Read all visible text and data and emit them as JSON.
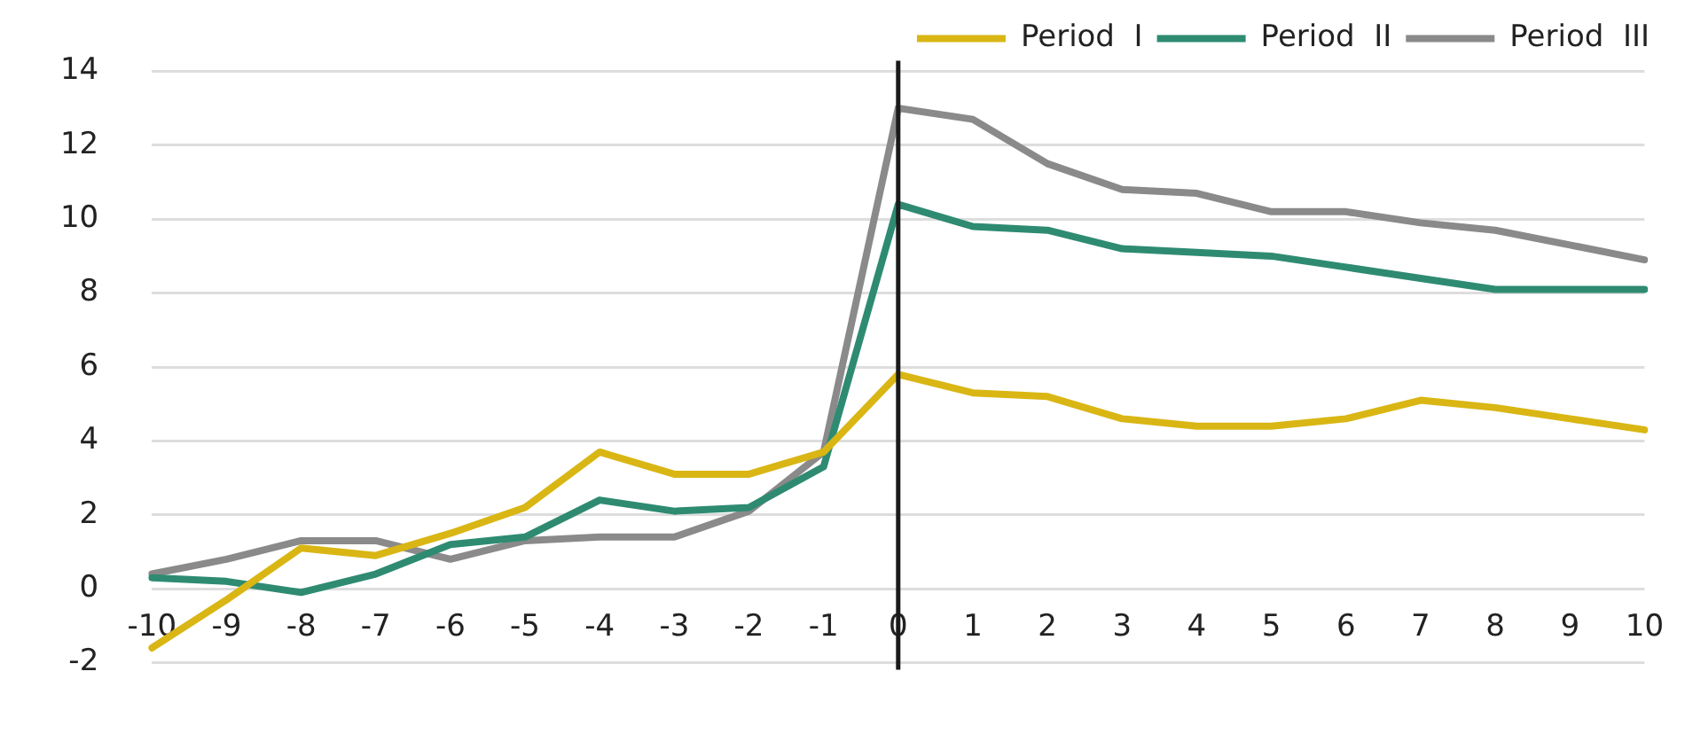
{
  "chart_data": {
    "type": "line",
    "categories": [
      "-10",
      "-9",
      "-8",
      "-7",
      "-6",
      "-5",
      "-4",
      "-3",
      "-2",
      "-1",
      "0",
      "1",
      "2",
      "3",
      "4",
      "5",
      "6",
      "7",
      "8",
      "9",
      "10"
    ],
    "series": [
      {
        "name": "Period  I",
        "color": "#d9b614",
        "values": [
          -1.6,
          -0.3,
          1.1,
          0.9,
          1.5,
          2.2,
          3.7,
          3.1,
          3.1,
          3.7,
          5.8,
          5.3,
          5.2,
          4.6,
          4.4,
          4.4,
          4.6,
          5.1,
          4.9,
          4.6,
          4.3
        ]
      },
      {
        "name": "Period  II",
        "color": "#2e8b72",
        "values": [
          0.3,
          0.2,
          -0.1,
          0.4,
          1.2,
          1.4,
          2.4,
          2.1,
          2.2,
          3.3,
          10.4,
          9.8,
          9.7,
          9.2,
          9.1,
          9.0,
          8.7,
          8.4,
          8.1,
          8.1,
          8.1
        ]
      },
      {
        "name": "Period  III",
        "color": "#8a8a8a",
        "values": [
          0.4,
          0.8,
          1.3,
          1.3,
          0.8,
          1.3,
          1.4,
          1.4,
          2.1,
          3.7,
          13.0,
          12.7,
          11.5,
          10.8,
          10.7,
          10.2,
          10.2,
          9.9,
          9.7,
          9.3,
          8.9
        ]
      }
    ],
    "ylim": [
      -2,
      14
    ],
    "yticks": [
      -2,
      0,
      2,
      4,
      6,
      8,
      10,
      12,
      14
    ],
    "grid": "y",
    "legend": "top right",
    "marker": "none",
    "line_style": "solid",
    "ref_lines": [
      {
        "axis": "x",
        "value": "0",
        "color": "#1a1a1a"
      }
    ]
  }
}
